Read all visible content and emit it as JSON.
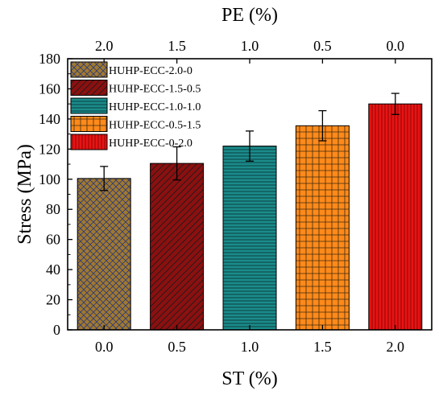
{
  "chart_data": {
    "type": "bar",
    "xlabel_bottom": "ST (%)",
    "xlabel_top": "PE (%)",
    "ylabel": "Stress (MPa)",
    "ylim": [
      0,
      180
    ],
    "yticks": [
      "0",
      "20",
      "40",
      "60",
      "80",
      "100",
      "120",
      "140",
      "160",
      "180"
    ],
    "categories_bottom": [
      "0.0",
      "0.5",
      "1.0",
      "1.5",
      "2.0"
    ],
    "categories_top": [
      "2.0",
      "1.5",
      "1.0",
      "0.5",
      "0.0"
    ],
    "grid": false,
    "legend_placement": "top-left",
    "series": [
      {
        "name": "HUHP-ECC-2.0-0",
        "value": 100.5,
        "error": 8,
        "color": "#a07830",
        "hatch_color": "#2a3a7a",
        "pattern": "crosshatch"
      },
      {
        "name": "HUHP-ECC-1.5-0.5",
        "value": 110.5,
        "error": 11,
        "color": "#8b1010",
        "hatch_color": "#1a1a1a",
        "pattern": "diagonal"
      },
      {
        "name": "HUHP-ECC-1.0-1.0",
        "value": 122,
        "error": 10,
        "color": "#1a8c8a",
        "hatch_color": "#0a2a30",
        "pattern": "horizontal"
      },
      {
        "name": "HUHP-ECC-0.5-1.5",
        "value": 135.5,
        "error": 10,
        "color": "#ff8a1a",
        "hatch_color": "#3a2a10",
        "pattern": "grid"
      },
      {
        "name": "HUHP-ECC-0-2.0",
        "value": 150,
        "error": 7,
        "color": "#e81414",
        "hatch_color": "#7a0000",
        "pattern": "vertical"
      }
    ]
  }
}
